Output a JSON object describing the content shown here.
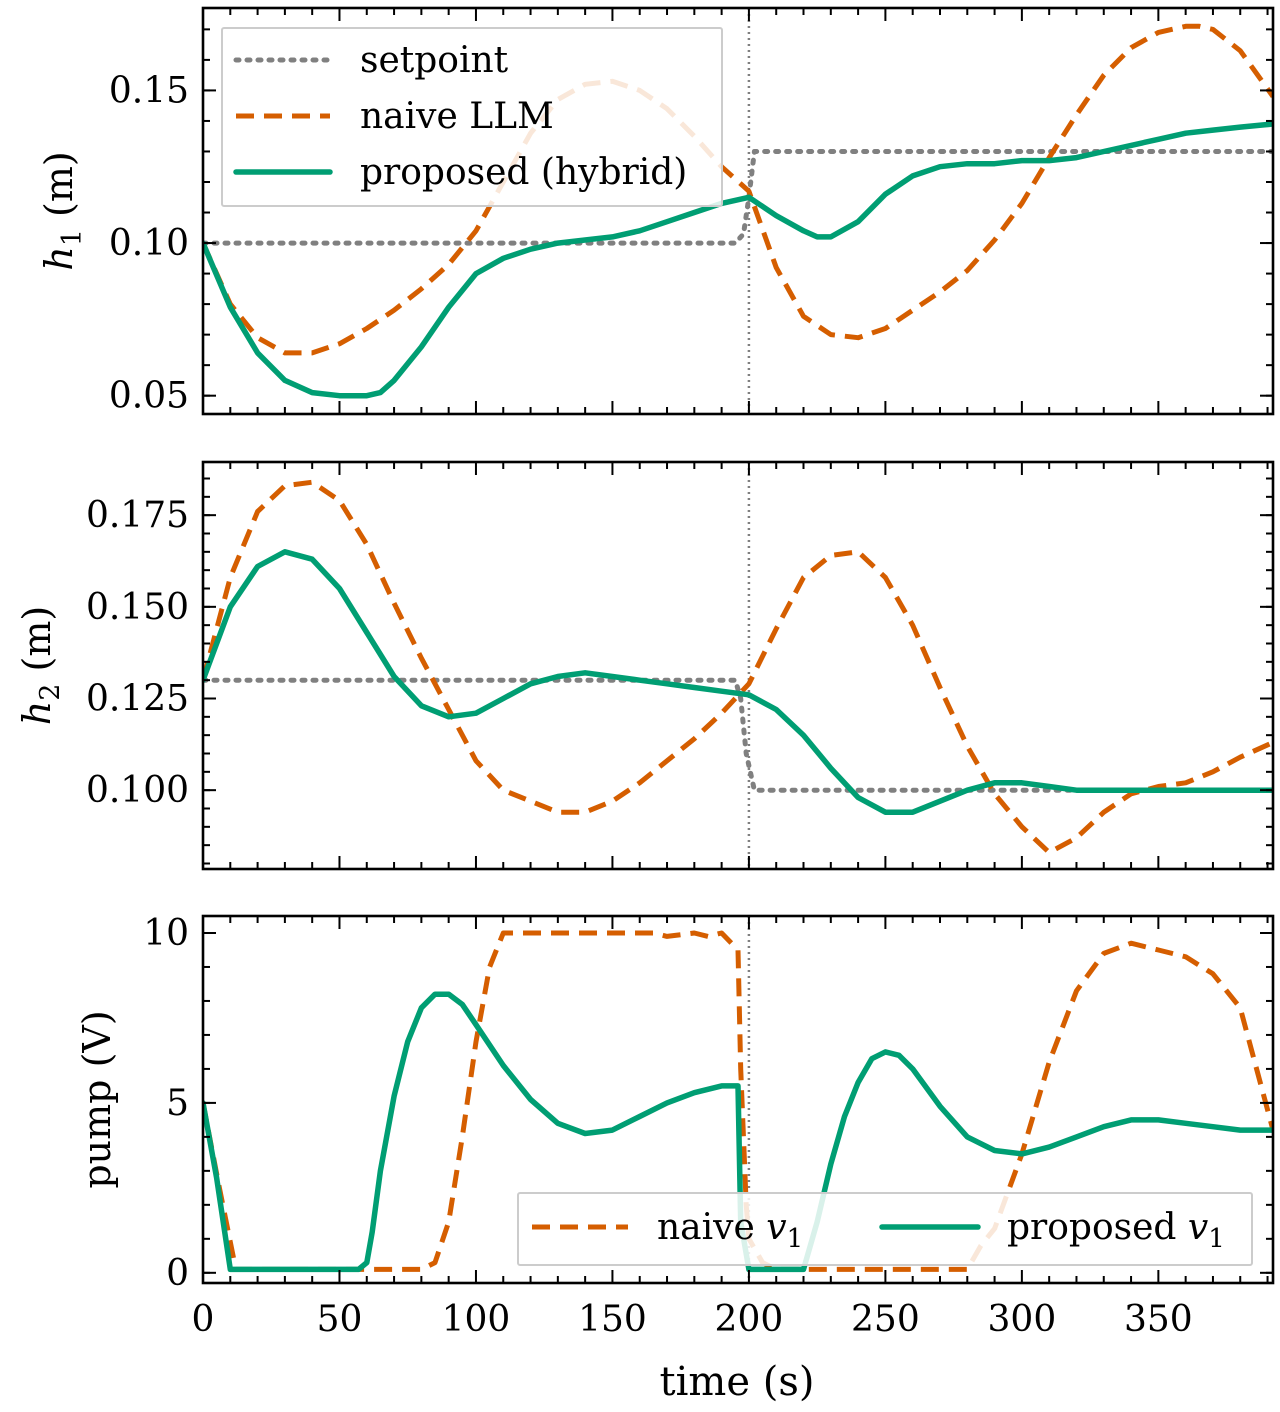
{
  "colors": {
    "setpoint": "#808080",
    "naive": "#d55e00",
    "proposed": "#009e73",
    "vline": "#808080"
  },
  "xlabel": "time (s)",
  "chart_data": [
    {
      "type": "line",
      "ylabel_main": "h",
      "ylabel_sub": "1",
      "ylabel_unit": "(m)",
      "xlim": [
        0,
        392
      ],
      "ylim": [
        0.044,
        0.177
      ],
      "yticks": [
        0.05,
        0.1,
        0.15
      ],
      "ytick_labels": [
        "0.05",
        "0.10",
        "0.15"
      ],
      "vline_x": 200,
      "legend": {
        "placement": "top-left",
        "entries": [
          {
            "label": "setpoint",
            "series": "setpoint"
          },
          {
            "label": "naive LLM",
            "series": "naive"
          },
          {
            "label": "proposed (hybrid)",
            "series": "proposed"
          }
        ]
      },
      "series": [
        {
          "key": "setpoint",
          "style": "dotted",
          "x": [
            0,
            195,
            198,
            200,
            202,
            392
          ],
          "y": [
            0.1,
            0.1,
            0.103,
            0.115,
            0.13,
            0.13
          ]
        },
        {
          "key": "naive",
          "style": "dashed",
          "x": [
            0,
            10,
            20,
            30,
            40,
            50,
            60,
            70,
            80,
            90,
            100,
            110,
            120,
            130,
            140,
            150,
            160,
            170,
            180,
            190,
            200,
            210,
            220,
            230,
            240,
            250,
            260,
            270,
            280,
            290,
            300,
            310,
            320,
            330,
            340,
            350,
            360,
            365,
            370,
            380,
            392
          ],
          "y": [
            0.1,
            0.08,
            0.069,
            0.064,
            0.064,
            0.067,
            0.072,
            0.078,
            0.085,
            0.093,
            0.104,
            0.12,
            0.136,
            0.147,
            0.152,
            0.153,
            0.15,
            0.144,
            0.135,
            0.125,
            0.117,
            0.092,
            0.076,
            0.07,
            0.069,
            0.072,
            0.078,
            0.084,
            0.091,
            0.101,
            0.113,
            0.128,
            0.142,
            0.155,
            0.164,
            0.169,
            0.171,
            0.171,
            0.17,
            0.163,
            0.148
          ]
        },
        {
          "key": "proposed",
          "style": "solid",
          "x": [
            0,
            10,
            20,
            30,
            40,
            50,
            60,
            65,
            70,
            80,
            90,
            100,
            110,
            120,
            130,
            140,
            150,
            160,
            170,
            180,
            190,
            200,
            210,
            220,
            225,
            230,
            240,
            250,
            260,
            270,
            280,
            290,
            300,
            310,
            320,
            330,
            340,
            350,
            360,
            370,
            380,
            392
          ],
          "y": [
            0.1,
            0.079,
            0.064,
            0.055,
            0.051,
            0.05,
            0.05,
            0.051,
            0.055,
            0.066,
            0.079,
            0.09,
            0.095,
            0.098,
            0.1,
            0.101,
            0.102,
            0.104,
            0.107,
            0.11,
            0.113,
            0.115,
            0.109,
            0.104,
            0.102,
            0.102,
            0.107,
            0.116,
            0.122,
            0.125,
            0.126,
            0.126,
            0.127,
            0.127,
            0.128,
            0.13,
            0.132,
            0.134,
            0.136,
            0.137,
            0.138,
            0.139
          ]
        }
      ]
    },
    {
      "type": "line",
      "ylabel_main": "h",
      "ylabel_sub": "2",
      "ylabel_unit": "(m)",
      "xlim": [
        0,
        392
      ],
      "ylim": [
        0.0785,
        0.1895
      ],
      "yticks": [
        0.1,
        0.125,
        0.15,
        0.175
      ],
      "ytick_labels": [
        "0.100",
        "0.125",
        "0.150",
        "0.175"
      ],
      "vline_x": 200,
      "series": [
        {
          "key": "setpoint",
          "style": "dotted",
          "x": [
            0,
            195,
            197,
            199,
            202,
            392
          ],
          "y": [
            0.13,
            0.13,
            0.125,
            0.11,
            0.1,
            0.1
          ]
        },
        {
          "key": "naive",
          "style": "dashed",
          "x": [
            0,
            10,
            20,
            30,
            40,
            50,
            60,
            70,
            80,
            90,
            100,
            110,
            120,
            130,
            140,
            150,
            160,
            170,
            180,
            190,
            200,
            210,
            220,
            230,
            240,
            250,
            260,
            270,
            280,
            290,
            300,
            310,
            320,
            330,
            340,
            350,
            360,
            370,
            380,
            392
          ],
          "y": [
            0.13,
            0.158,
            0.176,
            0.183,
            0.184,
            0.179,
            0.167,
            0.151,
            0.136,
            0.122,
            0.108,
            0.1,
            0.097,
            0.094,
            0.094,
            0.097,
            0.102,
            0.108,
            0.114,
            0.121,
            0.129,
            0.144,
            0.158,
            0.164,
            0.165,
            0.158,
            0.145,
            0.128,
            0.112,
            0.099,
            0.09,
            0.083,
            0.087,
            0.094,
            0.099,
            0.101,
            0.102,
            0.105,
            0.109,
            0.113
          ]
        },
        {
          "key": "proposed",
          "style": "solid",
          "x": [
            0,
            10,
            20,
            30,
            40,
            50,
            60,
            70,
            80,
            90,
            100,
            110,
            120,
            130,
            140,
            150,
            160,
            170,
            180,
            190,
            200,
            210,
            220,
            230,
            240,
            250,
            260,
            270,
            280,
            290,
            300,
            310,
            320,
            330,
            340,
            350,
            360,
            370,
            380,
            392
          ],
          "y": [
            0.13,
            0.15,
            0.161,
            0.165,
            0.163,
            0.155,
            0.143,
            0.131,
            0.123,
            0.12,
            0.121,
            0.125,
            0.129,
            0.131,
            0.132,
            0.131,
            0.13,
            0.129,
            0.128,
            0.127,
            0.126,
            0.122,
            0.115,
            0.106,
            0.098,
            0.094,
            0.094,
            0.097,
            0.1,
            0.102,
            0.102,
            0.101,
            0.1,
            0.1,
            0.1,
            0.1,
            0.1,
            0.1,
            0.1,
            0.1
          ]
        }
      ]
    },
    {
      "type": "line",
      "ylabel": "pump (V)",
      "xlim": [
        0,
        392
      ],
      "ylim": [
        -0.3,
        10.5
      ],
      "yticks": [
        0,
        5,
        10
      ],
      "ytick_labels": [
        "0",
        "5",
        "10"
      ],
      "xticks": [
        0,
        50,
        100,
        150,
        200,
        250,
        300,
        350
      ],
      "xtick_labels": [
        "0",
        "50",
        "100",
        "150",
        "200",
        "250",
        "300",
        "350"
      ],
      "vline_x": 200,
      "legend": {
        "placement": "bottom-right",
        "columns": 2,
        "entries": [
          {
            "label": "naive ",
            "math": "v",
            "sub": "1",
            "series": "naive"
          },
          {
            "label": "proposed ",
            "math": "v",
            "sub": "1",
            "series": "proposed"
          }
        ]
      },
      "series": [
        {
          "key": "naive",
          "style": "dashed",
          "x": [
            0,
            6,
            12,
            20,
            40,
            60,
            75,
            80,
            85,
            90,
            95,
            100,
            105,
            110,
            115,
            130,
            150,
            165,
            170,
            180,
            185,
            190,
            196,
            197,
            199,
            200,
            205,
            210,
            220,
            240,
            260,
            270,
            280,
            285,
            290,
            300,
            310,
            320,
            330,
            340,
            350,
            360,
            370,
            380,
            392
          ],
          "y": [
            5.0,
            2.5,
            0.1,
            0.1,
            0.1,
            0.1,
            0.1,
            0.1,
            0.3,
            1.5,
            4.0,
            6.8,
            9.0,
            10.0,
            10.0,
            10.0,
            10.0,
            10.0,
            9.9,
            10.0,
            9.9,
            10.0,
            9.5,
            6.0,
            2.0,
            1.0,
            0.3,
            0.1,
            0.1,
            0.1,
            0.1,
            0.1,
            0.1,
            0.8,
            1.3,
            3.5,
            6.2,
            8.3,
            9.4,
            9.7,
            9.5,
            9.3,
            8.8,
            7.8,
            4.2
          ]
        },
        {
          "key": "proposed",
          "style": "solid",
          "x": [
            0,
            5,
            10,
            20,
            40,
            57,
            60,
            62,
            65,
            70,
            75,
            80,
            85,
            90,
            95,
            100,
            110,
            120,
            130,
            140,
            150,
            160,
            170,
            180,
            190,
            195,
            196,
            197,
            200,
            210,
            220,
            225,
            230,
            235,
            240,
            245,
            250,
            255,
            260,
            270,
            280,
            290,
            300,
            310,
            320,
            330,
            340,
            350,
            360,
            370,
            380,
            392
          ],
          "y": [
            5.0,
            2.8,
            0.1,
            0.1,
            0.1,
            0.1,
            0.3,
            1.2,
            3.0,
            5.2,
            6.8,
            7.8,
            8.2,
            8.2,
            7.9,
            7.3,
            6.1,
            5.1,
            4.4,
            4.1,
            4.2,
            4.6,
            5.0,
            5.3,
            5.5,
            5.5,
            5.5,
            1.5,
            0.1,
            0.1,
            0.1,
            1.5,
            3.2,
            4.6,
            5.6,
            6.3,
            6.5,
            6.4,
            6.0,
            4.9,
            4.0,
            3.6,
            3.5,
            3.7,
            4.0,
            4.3,
            4.5,
            4.5,
            4.4,
            4.3,
            4.2,
            4.2
          ]
        }
      ]
    }
  ]
}
